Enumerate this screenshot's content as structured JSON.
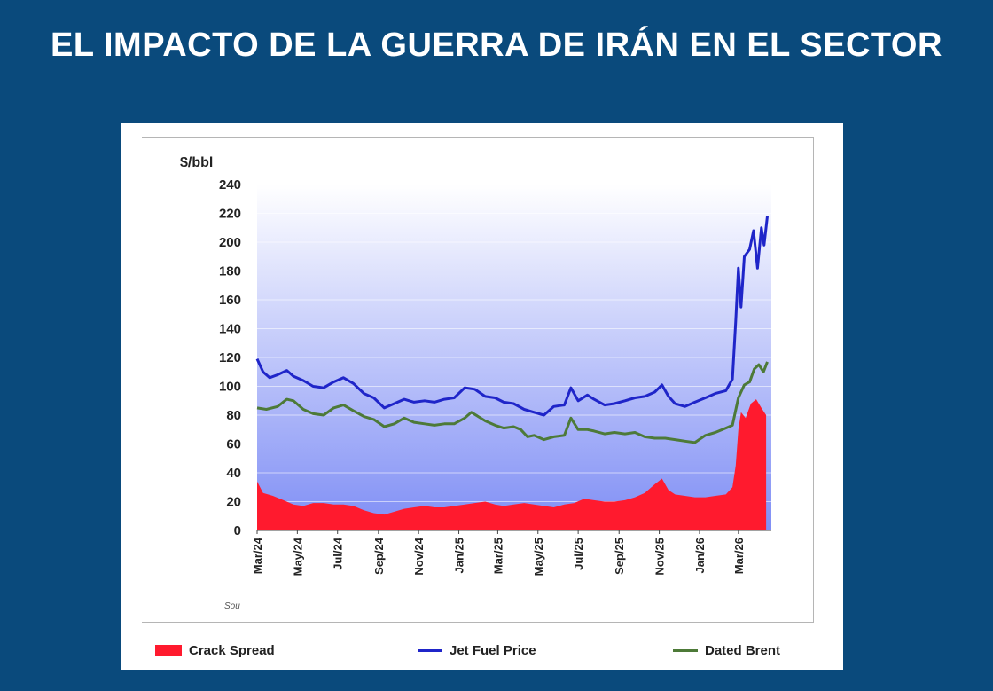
{
  "slide": {
    "title": "EL IMPACTO DE LA GUERRA DE IRÁN EN EL SECTOR"
  },
  "colors": {
    "background": "#0a4a7c",
    "crack_spread": "#ff1a2e",
    "jet_fuel": "#1f25c9",
    "dated_brent": "#4d7a38",
    "plot_gradient_top": "#ffffff",
    "plot_gradient_bottom": "#7f8ef5"
  },
  "source_fragment": "Sou",
  "chart_data": {
    "type": "line",
    "ylabel": "$/bbl",
    "ylim": [
      0,
      240
    ],
    "yticks": [
      0,
      20,
      40,
      60,
      80,
      100,
      120,
      140,
      160,
      180,
      200,
      220,
      240
    ],
    "xlim": [
      "2024-03-01",
      "2026-04-20"
    ],
    "x_tick_labels": [
      "Mar/24",
      "May/24",
      "Jul/24",
      "Sep/24",
      "Nov/24",
      "Jan/25",
      "Mar/25",
      "May/25",
      "Jul/25",
      "Sep/25",
      "Nov/25",
      "Jan/26",
      "Mar/26"
    ],
    "x_tick_dates": [
      "2024-03-01",
      "2024-05-01",
      "2024-07-01",
      "2024-09-01",
      "2024-11-01",
      "2025-01-01",
      "2025-03-01",
      "2025-05-01",
      "2025-07-01",
      "2025-09-01",
      "2025-11-01",
      "2026-01-01",
      "2026-03-01"
    ],
    "legend_position": "bottom",
    "series": [
      {
        "name": "Crack Spread",
        "style": "area",
        "points": [
          [
            "2024-03-01",
            34
          ],
          [
            "2024-03-10",
            26
          ],
          [
            "2024-03-25",
            24
          ],
          [
            "2024-04-10",
            21
          ],
          [
            "2024-04-25",
            18
          ],
          [
            "2024-05-10",
            17
          ],
          [
            "2024-05-25",
            19
          ],
          [
            "2024-06-10",
            19
          ],
          [
            "2024-06-25",
            18
          ],
          [
            "2024-07-10",
            18
          ],
          [
            "2024-07-25",
            17
          ],
          [
            "2024-08-10",
            14
          ],
          [
            "2024-08-25",
            12
          ],
          [
            "2024-09-10",
            11
          ],
          [
            "2024-09-25",
            13
          ],
          [
            "2024-10-10",
            15
          ],
          [
            "2024-10-25",
            16
          ],
          [
            "2024-11-10",
            17
          ],
          [
            "2024-11-25",
            16
          ],
          [
            "2024-12-10",
            16
          ],
          [
            "2024-12-25",
            17
          ],
          [
            "2025-01-10",
            18
          ],
          [
            "2025-01-25",
            19
          ],
          [
            "2025-02-10",
            20
          ],
          [
            "2025-02-25",
            18
          ],
          [
            "2025-03-10",
            17
          ],
          [
            "2025-03-25",
            18
          ],
          [
            "2025-04-10",
            19
          ],
          [
            "2025-04-25",
            18
          ],
          [
            "2025-05-10",
            17
          ],
          [
            "2025-05-25",
            16
          ],
          [
            "2025-06-10",
            18
          ],
          [
            "2025-06-25",
            19
          ],
          [
            "2025-07-10",
            22
          ],
          [
            "2025-07-25",
            21
          ],
          [
            "2025-08-10",
            20
          ],
          [
            "2025-08-25",
            20
          ],
          [
            "2025-09-10",
            21
          ],
          [
            "2025-09-25",
            23
          ],
          [
            "2025-10-10",
            26
          ],
          [
            "2025-10-25",
            32
          ],
          [
            "2025-11-05",
            36
          ],
          [
            "2025-11-15",
            28
          ],
          [
            "2025-11-25",
            25
          ],
          [
            "2025-12-10",
            24
          ],
          [
            "2025-12-25",
            23
          ],
          [
            "2026-01-10",
            23
          ],
          [
            "2026-01-25",
            24
          ],
          [
            "2026-02-10",
            25
          ],
          [
            "2026-02-20",
            30
          ],
          [
            "2026-02-25",
            45
          ],
          [
            "2026-03-01",
            70
          ],
          [
            "2026-03-05",
            82
          ],
          [
            "2026-03-12",
            78
          ],
          [
            "2026-03-20",
            88
          ],
          [
            "2026-03-28",
            91
          ],
          [
            "2026-04-05",
            85
          ],
          [
            "2026-04-12",
            80
          ]
        ]
      },
      {
        "name": "Jet Fuel Price",
        "style": "line",
        "points": [
          [
            "2024-03-01",
            119
          ],
          [
            "2024-03-10",
            110
          ],
          [
            "2024-03-20",
            106
          ],
          [
            "2024-04-01",
            108
          ],
          [
            "2024-04-15",
            111
          ],
          [
            "2024-04-25",
            107
          ],
          [
            "2024-05-10",
            104
          ],
          [
            "2024-05-25",
            100
          ],
          [
            "2024-06-10",
            99
          ],
          [
            "2024-06-25",
            103
          ],
          [
            "2024-07-10",
            106
          ],
          [
            "2024-07-25",
            102
          ],
          [
            "2024-08-10",
            95
          ],
          [
            "2024-08-25",
            92
          ],
          [
            "2024-09-10",
            85
          ],
          [
            "2024-09-25",
            88
          ],
          [
            "2024-10-10",
            91
          ],
          [
            "2024-10-25",
            89
          ],
          [
            "2024-11-10",
            90
          ],
          [
            "2024-11-25",
            89
          ],
          [
            "2024-12-10",
            91
          ],
          [
            "2024-12-25",
            92
          ],
          [
            "2025-01-10",
            99
          ],
          [
            "2025-01-25",
            98
          ],
          [
            "2025-02-10",
            93
          ],
          [
            "2025-02-25",
            92
          ],
          [
            "2025-03-10",
            89
          ],
          [
            "2025-03-25",
            88
          ],
          [
            "2025-04-10",
            84
          ],
          [
            "2025-04-25",
            82
          ],
          [
            "2025-05-10",
            80
          ],
          [
            "2025-05-25",
            86
          ],
          [
            "2025-06-10",
            87
          ],
          [
            "2025-06-20",
            99
          ],
          [
            "2025-07-01",
            90
          ],
          [
            "2025-07-15",
            94
          ],
          [
            "2025-07-25",
            91
          ],
          [
            "2025-08-10",
            87
          ],
          [
            "2025-08-25",
            88
          ],
          [
            "2025-09-10",
            90
          ],
          [
            "2025-09-25",
            92
          ],
          [
            "2025-10-10",
            93
          ],
          [
            "2025-10-25",
            96
          ],
          [
            "2025-11-05",
            101
          ],
          [
            "2025-11-15",
            93
          ],
          [
            "2025-11-25",
            88
          ],
          [
            "2025-12-10",
            86
          ],
          [
            "2025-12-25",
            89
          ],
          [
            "2026-01-10",
            92
          ],
          [
            "2026-01-25",
            95
          ],
          [
            "2026-02-10",
            97
          ],
          [
            "2026-02-20",
            105
          ],
          [
            "2026-02-25",
            145
          ],
          [
            "2026-03-01",
            182
          ],
          [
            "2026-03-05",
            155
          ],
          [
            "2026-03-10",
            190
          ],
          [
            "2026-03-18",
            195
          ],
          [
            "2026-03-24",
            208
          ],
          [
            "2026-03-30",
            182
          ],
          [
            "2026-04-05",
            210
          ],
          [
            "2026-04-09",
            198
          ],
          [
            "2026-04-14",
            218
          ]
        ]
      },
      {
        "name": "Dated Brent",
        "style": "line",
        "points": [
          [
            "2024-03-01",
            85
          ],
          [
            "2024-03-15",
            84
          ],
          [
            "2024-04-01",
            86
          ],
          [
            "2024-04-15",
            91
          ],
          [
            "2024-04-25",
            90
          ],
          [
            "2024-05-10",
            84
          ],
          [
            "2024-05-25",
            81
          ],
          [
            "2024-06-10",
            80
          ],
          [
            "2024-06-25",
            85
          ],
          [
            "2024-07-10",
            87
          ],
          [
            "2024-07-25",
            83
          ],
          [
            "2024-08-10",
            79
          ],
          [
            "2024-08-25",
            77
          ],
          [
            "2024-09-10",
            72
          ],
          [
            "2024-09-25",
            74
          ],
          [
            "2024-10-10",
            78
          ],
          [
            "2024-10-25",
            75
          ],
          [
            "2024-11-10",
            74
          ],
          [
            "2024-11-25",
            73
          ],
          [
            "2024-12-10",
            74
          ],
          [
            "2024-12-25",
            74
          ],
          [
            "2025-01-10",
            78
          ],
          [
            "2025-01-20",
            82
          ],
          [
            "2025-02-10",
            76
          ],
          [
            "2025-02-25",
            73
          ],
          [
            "2025-03-10",
            71
          ],
          [
            "2025-03-25",
            72
          ],
          [
            "2025-04-05",
            70
          ],
          [
            "2025-04-15",
            65
          ],
          [
            "2025-04-25",
            66
          ],
          [
            "2025-05-10",
            63
          ],
          [
            "2025-05-25",
            65
          ],
          [
            "2025-06-10",
            66
          ],
          [
            "2025-06-20",
            78
          ],
          [
            "2025-07-01",
            70
          ],
          [
            "2025-07-15",
            70
          ],
          [
            "2025-07-25",
            69
          ],
          [
            "2025-08-10",
            67
          ],
          [
            "2025-08-25",
            68
          ],
          [
            "2025-09-10",
            67
          ],
          [
            "2025-09-25",
            68
          ],
          [
            "2025-10-10",
            65
          ],
          [
            "2025-10-25",
            64
          ],
          [
            "2025-11-10",
            64
          ],
          [
            "2025-11-25",
            63
          ],
          [
            "2025-12-10",
            62
          ],
          [
            "2025-12-25",
            61
          ],
          [
            "2026-01-10",
            66
          ],
          [
            "2026-01-25",
            68
          ],
          [
            "2026-02-10",
            71
          ],
          [
            "2026-02-20",
            73
          ],
          [
            "2026-03-01",
            92
          ],
          [
            "2026-03-10",
            101
          ],
          [
            "2026-03-18",
            103
          ],
          [
            "2026-03-25",
            112
          ],
          [
            "2026-04-01",
            115
          ],
          [
            "2026-04-08",
            110
          ],
          [
            "2026-04-14",
            117
          ]
        ]
      }
    ]
  }
}
